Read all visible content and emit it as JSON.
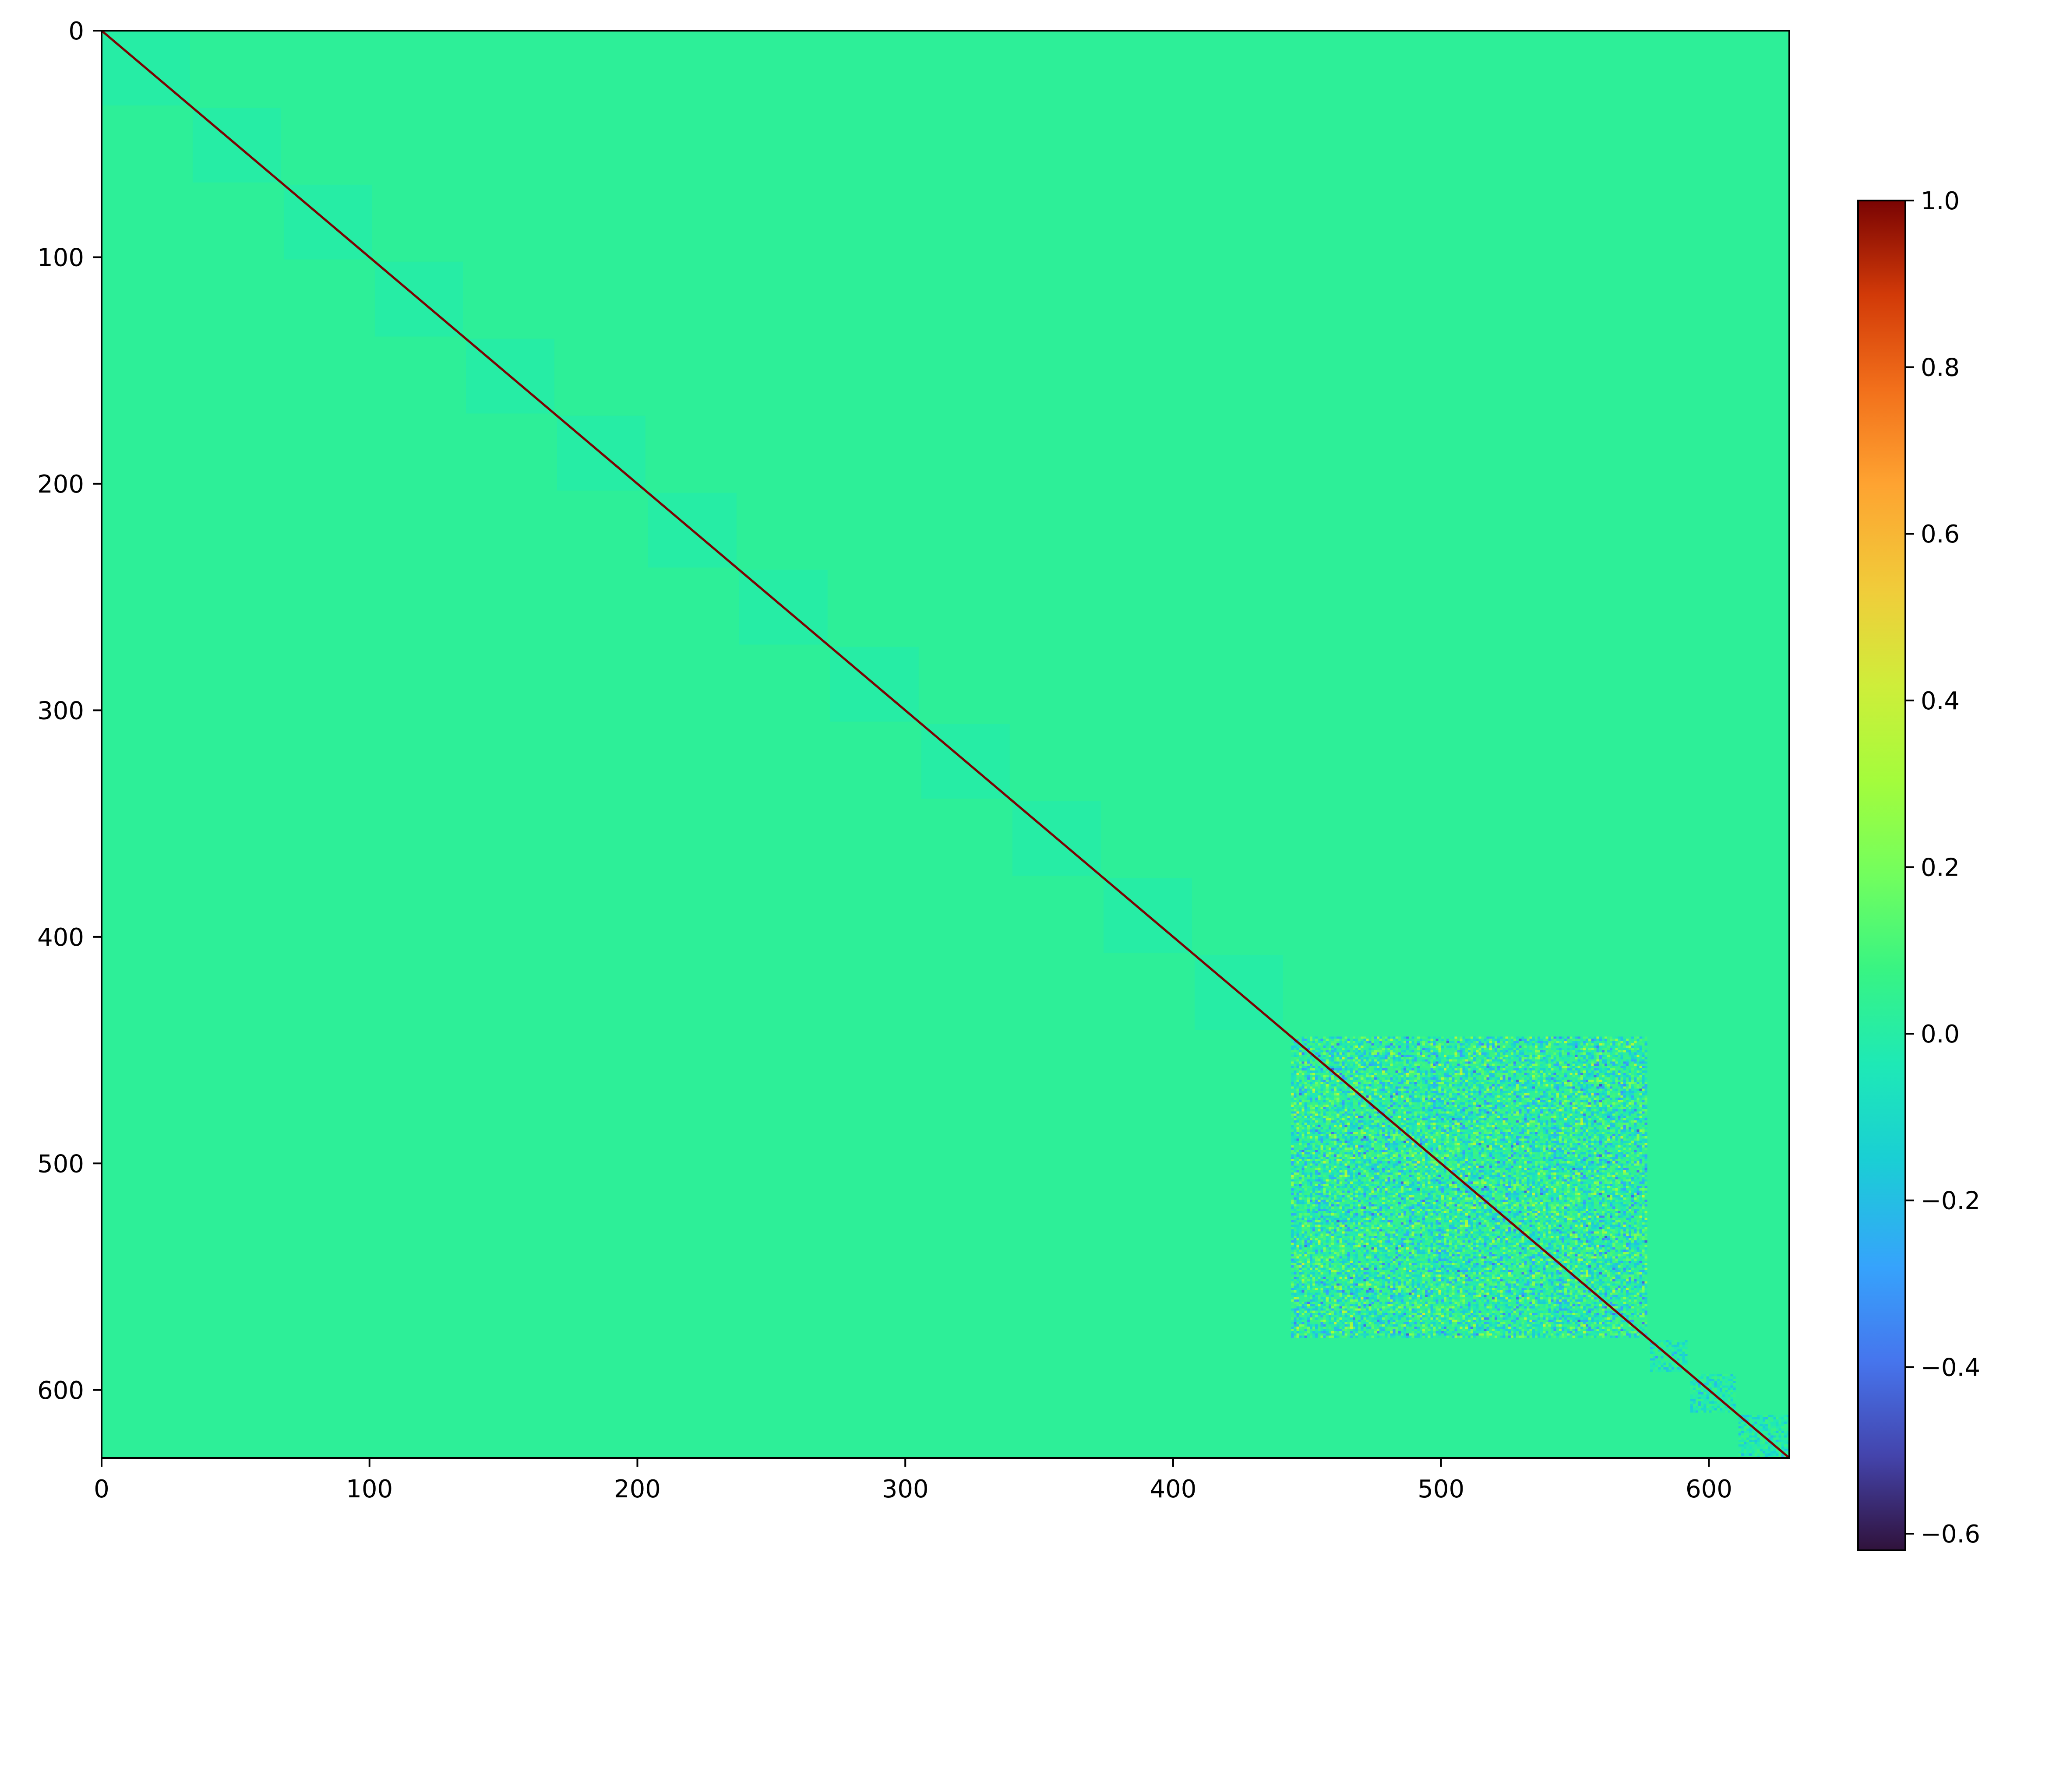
{
  "chart_data": {
    "type": "heatmap",
    "title": "",
    "xlabel": "",
    "ylabel": "",
    "matrix_size": 630,
    "xlim": [
      0,
      630
    ],
    "ylim": [
      630,
      0
    ],
    "x_ticks": [
      0,
      100,
      200,
      300,
      400,
      500,
      600
    ],
    "y_ticks": [
      0,
      100,
      200,
      300,
      400,
      500,
      600
    ],
    "background_value": 0.03,
    "diagonal_value": 1.0,
    "diagonal_blocks": [
      {
        "start": 0,
        "end": 33,
        "value": 0.0
      },
      {
        "start": 34,
        "end": 67,
        "value": 0.0
      },
      {
        "start": 68,
        "end": 101,
        "value": 0.0
      },
      {
        "start": 102,
        "end": 135,
        "value": 0.0
      },
      {
        "start": 136,
        "end": 169,
        "value": 0.0
      },
      {
        "start": 170,
        "end": 203,
        "value": 0.0
      },
      {
        "start": 204,
        "end": 237,
        "value": 0.0
      },
      {
        "start": 238,
        "end": 271,
        "value": 0.0
      },
      {
        "start": 272,
        "end": 305,
        "value": 0.0
      },
      {
        "start": 306,
        "end": 339,
        "value": 0.0
      },
      {
        "start": 340,
        "end": 373,
        "value": 0.0
      },
      {
        "start": 374,
        "end": 407,
        "value": 0.0
      },
      {
        "start": 408,
        "end": 441,
        "value": 0.0
      }
    ],
    "noisy_block": {
      "start": 444,
      "end": 577,
      "value_range": [
        -0.5,
        0.45
      ]
    },
    "small_blocks": [
      {
        "start": 578,
        "end": 592,
        "value_range": [
          -0.3,
          0.1
        ]
      },
      {
        "start": 593,
        "end": 610,
        "value_range": [
          -0.3,
          0.1
        ]
      },
      {
        "start": 611,
        "end": 630,
        "value_range": [
          -0.3,
          0.1
        ]
      }
    ],
    "colorbar": {
      "colormap": "turbo",
      "vmin": -0.62,
      "vmax": 1.0,
      "ticks": [
        1.0,
        0.8,
        0.6,
        0.4,
        0.2,
        0.0,
        -0.2,
        -0.4,
        -0.6
      ],
      "tick_labels": [
        "1.0",
        "0.8",
        "0.6",
        "0.4",
        "0.2",
        "0.0",
        "−0.2",
        "−0.4",
        "−0.6"
      ]
    },
    "grid": false,
    "legend": "none"
  }
}
